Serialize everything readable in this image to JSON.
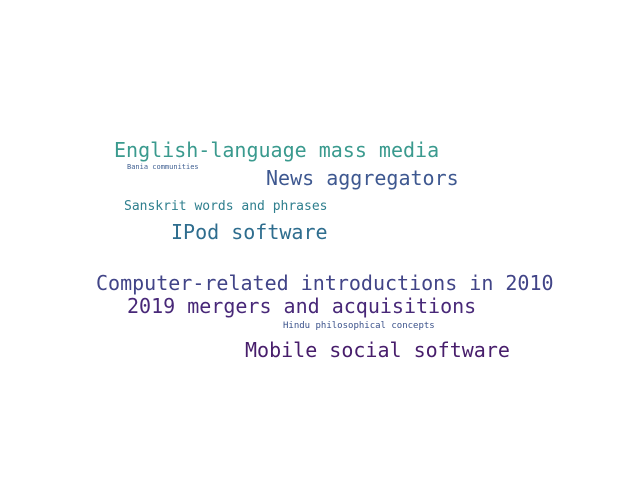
{
  "words": [
    {
      "text": "English-language mass media",
      "color": "#3a9a8e"
    },
    {
      "text": "Bania communities",
      "color": "#3f5f91"
    },
    {
      "text": "News aggregators",
      "color": "#3e5890"
    },
    {
      "text": "Sanskrit words and phrases",
      "color": "#2f7f8e"
    },
    {
      "text": "IPod software",
      "color": "#2e6d8e"
    },
    {
      "text": "Computer-related introductions in 2010",
      "color": "#414487"
    },
    {
      "text": "2019 mergers and acquisitions",
      "color": "#482878"
    },
    {
      "text": "Hindu philosophical concepts",
      "color": "#3b528b"
    },
    {
      "text": "Mobile social software",
      "color": "#471d6b"
    }
  ]
}
